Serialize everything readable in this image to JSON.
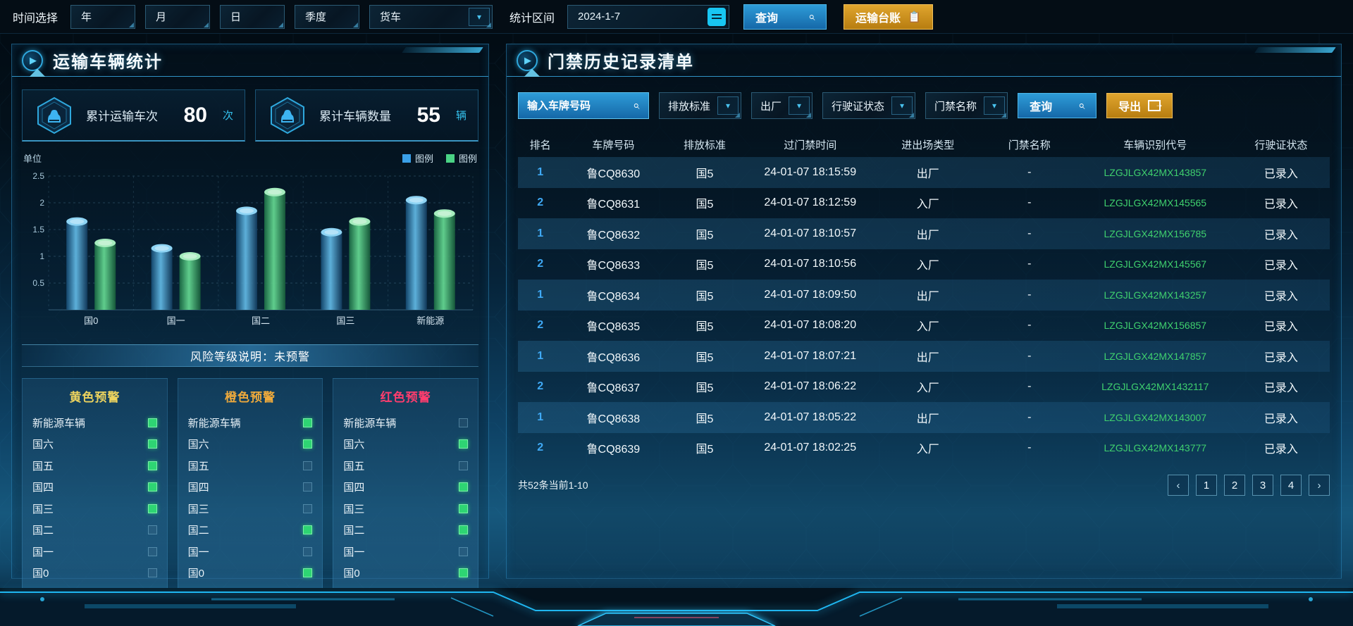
{
  "colors": {
    "accent_cyan": "#2fc0ef",
    "button_blue": "#1f7fc0",
    "button_orange": "#cf941c",
    "rank_blue": "#3fa9f5",
    "vin_green": "#3fd06e",
    "check_green": "#2ed573",
    "warn_yellow": "#ecd35e",
    "warn_orange": "#eda93c",
    "warn_red": "#ff3d6e"
  },
  "topbar": {
    "time_label": "时间选择",
    "time_buttons": [
      "年",
      "月",
      "日",
      "季度"
    ],
    "vehicle_dropdown": "货车",
    "range_label": "统计区间",
    "date_value": "2024-1-7",
    "calendar_icon": "calendar-icon",
    "query_label": "查询",
    "query_icon": "search-icon",
    "ledger_label": "运输台账",
    "ledger_icon": "clipboard-icon"
  },
  "left_panel": {
    "title": "运输车辆统计",
    "stats": [
      {
        "label": "累计运输车次",
        "value": "80",
        "unit": "次",
        "icon": "car-icon"
      },
      {
        "label": "累计车辆数量",
        "value": "55",
        "unit": "辆",
        "icon": "car-icon"
      }
    ],
    "risk_banner": "风险等级说明：未预警",
    "warning_columns": [
      {
        "title": "黄色预警",
        "color": "#ecd35e",
        "items": [
          {
            "label": "新能源车辆",
            "checked": true
          },
          {
            "label": "国六",
            "checked": true
          },
          {
            "label": "国五",
            "checked": true
          },
          {
            "label": "国四",
            "checked": true
          },
          {
            "label": "国三",
            "checked": true
          },
          {
            "label": "国二",
            "checked": false
          },
          {
            "label": "国一",
            "checked": false
          },
          {
            "label": "国0",
            "checked": false
          }
        ]
      },
      {
        "title": "橙色预警",
        "color": "#eda93c",
        "items": [
          {
            "label": "新能源车辆",
            "checked": true
          },
          {
            "label": "国六",
            "checked": true
          },
          {
            "label": "国五",
            "checked": false
          },
          {
            "label": "国四",
            "checked": false
          },
          {
            "label": "国三",
            "checked": false
          },
          {
            "label": "国二",
            "checked": true
          },
          {
            "label": "国一",
            "checked": false
          },
          {
            "label": "国0",
            "checked": true
          }
        ]
      },
      {
        "title": "红色预警",
        "color": "#ff3d6e",
        "items": [
          {
            "label": "新能源车辆",
            "checked": false
          },
          {
            "label": "国六",
            "checked": true
          },
          {
            "label": "国五",
            "checked": false
          },
          {
            "label": "国四",
            "checked": true
          },
          {
            "label": "国三",
            "checked": true
          },
          {
            "label": "国二",
            "checked": true
          },
          {
            "label": "国一",
            "checked": false
          },
          {
            "label": "国0",
            "checked": true
          }
        ]
      }
    ]
  },
  "chart_data": {
    "type": "bar",
    "title": "",
    "unit_label": "单位",
    "categories": [
      "国0",
      "国一",
      "国二",
      "国三",
      "新能源"
    ],
    "series": [
      {
        "name": "图例",
        "color": "#3aa0e8",
        "values": [
          1.65,
          1.15,
          1.85,
          1.45,
          2.05
        ]
      },
      {
        "name": "图例",
        "color": "#4ad385",
        "values": [
          1.25,
          1.0,
          2.2,
          1.65,
          1.8
        ]
      }
    ],
    "xlabel": "",
    "ylabel": "单位",
    "ylim": [
      0,
      2.5
    ],
    "yticks": [
      0.5,
      1,
      1.5,
      2,
      2.5
    ],
    "grid": "dashed-horizontal-and-vertical",
    "legend_position": "top-right",
    "bar_style": "3d-cylinder"
  },
  "right_panel": {
    "title": "门禁历史记录清单",
    "filters": {
      "plate_placeholder": "输入车牌号码",
      "plate_search_icon": "search-icon",
      "dropdowns": [
        "排放标准",
        "出厂",
        "行驶证状态",
        "门禁名称"
      ],
      "query_label": "查询",
      "export_label": "导出",
      "export_icon": "export-icon"
    },
    "table": {
      "columns": [
        "排名",
        "车牌号码",
        "排放标准",
        "过门禁时间",
        "进出场类型",
        "门禁名称",
        "车辆识别代号",
        "行驶证状态"
      ],
      "rows": [
        [
          "1",
          "鲁CQ8630",
          "国5",
          "24-01-07 18:15:59",
          "出厂",
          "-",
          "LZGJLGX42MX143857",
          "已录入"
        ],
        [
          "2",
          "鲁CQ8631",
          "国5",
          "24-01-07 18:12:59",
          "入厂",
          "-",
          "LZGJLGX42MX145565",
          "已录入"
        ],
        [
          "1",
          "鲁CQ8632",
          "国5",
          "24-01-07 18:10:57",
          "出厂",
          "-",
          "LZGJLGX42MX156785",
          "已录入"
        ],
        [
          "2",
          "鲁CQ8633",
          "国5",
          "24-01-07 18:10:56",
          "入厂",
          "-",
          "LZGJLGX42MX145567",
          "已录入"
        ],
        [
          "1",
          "鲁CQ8634",
          "国5",
          "24-01-07 18:09:50",
          "出厂",
          "-",
          "LZGJLGX42MX143257",
          "已录入"
        ],
        [
          "2",
          "鲁CQ8635",
          "国5",
          "24-01-07 18:08:20",
          "入厂",
          "-",
          "LZGJLGX42MX156857",
          "已录入"
        ],
        [
          "1",
          "鲁CQ8636",
          "国5",
          "24-01-07 18:07:21",
          "出厂",
          "-",
          "LZGJLGX42MX147857",
          "已录入"
        ],
        [
          "2",
          "鲁CQ8637",
          "国5",
          "24-01-07 18:06:22",
          "入厂",
          "-",
          "LZGJLGX42MX1432117",
          "已录入"
        ],
        [
          "1",
          "鲁CQ8638",
          "国5",
          "24-01-07 18:05:22",
          "出厂",
          "-",
          "LZGJLGX42MX143007",
          "已录入"
        ],
        [
          "2",
          "鲁CQ8639",
          "国5",
          "24-01-07 18:02:25",
          "入厂",
          "-",
          "LZGJLGX42MX143777",
          "已录入"
        ]
      ]
    },
    "footer": {
      "summary": "共52条当前1-10",
      "prev": "‹",
      "pages": [
        "1",
        "2",
        "3",
        "4"
      ],
      "next": "›"
    }
  }
}
